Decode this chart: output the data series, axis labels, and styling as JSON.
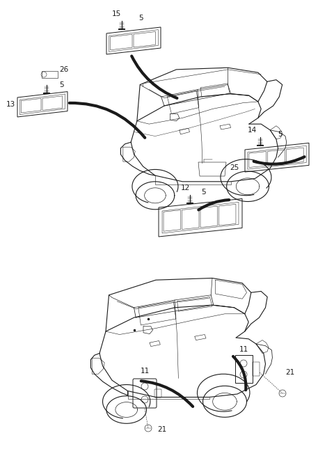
{
  "bg_color": "#ffffff",
  "fig_width": 4.8,
  "fig_height": 6.55,
  "dpi": 100,
  "lc": "#1a1a1a",
  "lw_car": 0.8,
  "lw_part": 0.7,
  "lw_leader": 3.0,
  "fs": 7.5
}
